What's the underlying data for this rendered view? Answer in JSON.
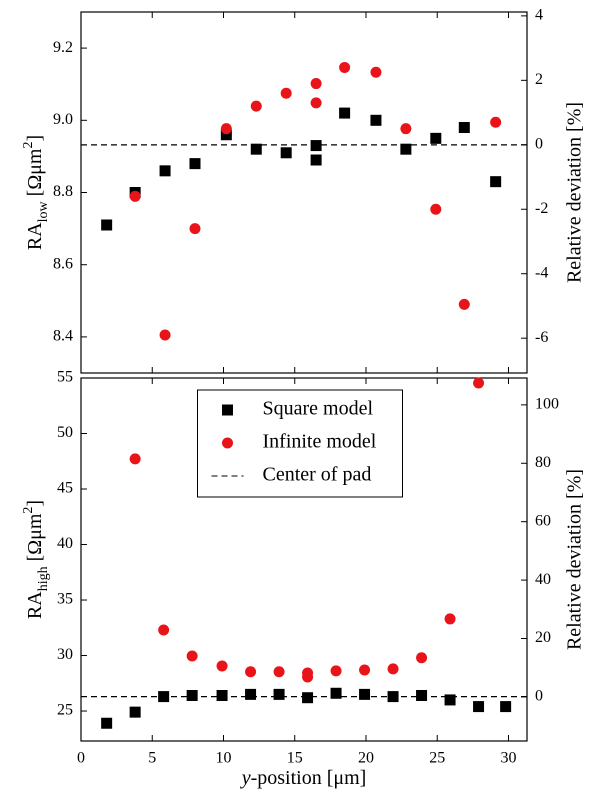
{
  "chart_data": [
    {
      "type": "scatter",
      "xlim": [
        0,
        31.3
      ],
      "xticks": [
        0,
        5,
        10,
        15,
        20,
        25,
        30
      ],
      "ylim": [
        8.3,
        9.3
      ],
      "yticks": [
        8.4,
        8.6,
        8.8,
        {
          "value": 9,
          "label": "9.0"
        },
        9.2
      ],
      "y2lim": [
        -7.08,
        4.12
      ],
      "y2ticks": [
        -6,
        -4,
        -2,
        0,
        2,
        4
      ],
      "ylabel_parts": [
        {
          "text": "RA"
        },
        {
          "text": "low",
          "style": "sub"
        },
        {
          "text": " [Ωμm"
        },
        {
          "text": "2",
          "style": "sup"
        },
        {
          "text": "]"
        }
      ],
      "y2label": "Relative deviation [%]",
      "series": [
        {
          "marker": "square",
          "color": "#000000",
          "x": [
            1.8,
            3.8,
            5.9,
            8.0,
            10.2,
            12.3,
            14.4,
            16.5,
            16.5,
            18.5,
            20.7,
            22.8,
            24.9,
            26.9,
            29.1
          ],
          "values": [
            8.71,
            8.8,
            8.86,
            8.88,
            8.96,
            8.92,
            8.91,
            8.93,
            8.89,
            9.02,
            9.0,
            8.92,
            8.95,
            8.98,
            8.83
          ]
        },
        {
          "marker": "circle",
          "color": "#e8141a",
          "axis": "y2",
          "x": [
            3.8,
            5.9,
            8.0,
            10.2,
            12.3,
            14.4,
            16.5,
            16.5,
            18.5,
            20.7,
            22.8,
            24.9,
            26.9,
            29.1
          ],
          "values": [
            -1.6,
            -5.9,
            -2.6,
            0.5,
            1.2,
            1.6,
            1.9,
            1.3,
            2.4,
            2.25,
            0.5,
            -2.0,
            -4.95,
            0.7
          ]
        },
        {
          "marker": "dashed-line",
          "color": "#000000",
          "value": 8.932
        }
      ]
    },
    {
      "type": "scatter",
      "xlim": [
        0,
        31.3
      ],
      "xticks": [
        0,
        5,
        10,
        15,
        20,
        25,
        30
      ],
      "xlabel_parts": [
        {
          "text": "y",
          "style": "italic"
        },
        {
          "text": "-position [μm]"
        }
      ],
      "ylim": [
        22.3,
        55
      ],
      "yticks": [
        25,
        30,
        35,
        40,
        45,
        50,
        55
      ],
      "y2lim": [
        -15.1,
        109.2
      ],
      "y2ticks": [
        0,
        20,
        40,
        60,
        80,
        100
      ],
      "ylabel_parts": [
        {
          "text": "RA"
        },
        {
          "text": "high",
          "style": "sub"
        },
        {
          "text": " [Ωμm"
        },
        {
          "text": "2",
          "style": "sup"
        },
        {
          "text": "]"
        }
      ],
      "y2label": "Relative deviation [%]",
      "legend": "upper center",
      "series": [
        {
          "name": "Square model",
          "marker": "square",
          "color": "#000000",
          "x": [
            1.8,
            3.8,
            5.8,
            7.8,
            9.9,
            11.9,
            13.9,
            15.9,
            17.9,
            19.9,
            21.9,
            23.9,
            25.9,
            27.9,
            29.8
          ],
          "values": [
            23.9,
            24.9,
            26.3,
            26.4,
            26.4,
            26.5,
            26.5,
            26.2,
            26.6,
            26.5,
            26.3,
            26.4,
            26.0,
            25.4,
            25.4
          ]
        },
        {
          "name": "Infinite model",
          "marker": "circle",
          "color": "#e8141a",
          "axis": "y2",
          "x": [
            3.8,
            5.8,
            7.8,
            9.9,
            11.9,
            13.9,
            15.9,
            15.9,
            17.9,
            19.9,
            21.9,
            23.9,
            25.9,
            27.9
          ],
          "values": [
            81.5,
            22.9,
            14.0,
            10.6,
            8.6,
            8.6,
            8.2,
            6.8,
            8.9,
            9.2,
            9.6,
            13.4,
            26.7,
            107.5
          ]
        },
        {
          "name": "Center of pad",
          "marker": "dashed-line",
          "color": "#000000",
          "value": 26.3
        }
      ]
    }
  ]
}
